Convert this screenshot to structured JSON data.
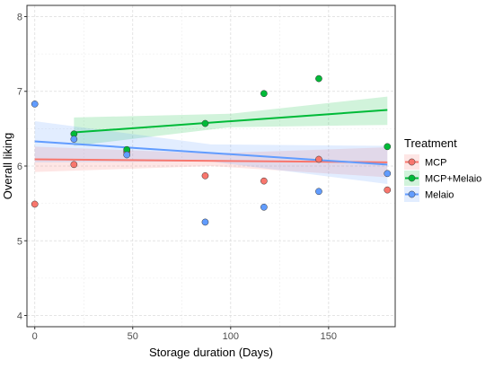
{
  "chart_data": {
    "type": "scatter",
    "xlabel": "Storage duration (Days)",
    "ylabel": "Overall liking",
    "xlim": [
      -4,
      184
    ],
    "ylim": [
      3.85,
      8.15
    ],
    "x_ticks": [
      0,
      50,
      100,
      150
    ],
    "y_ticks": [
      4,
      5,
      6,
      7,
      8
    ],
    "grid": true,
    "legend": {
      "title": "Treatment",
      "placement": "right"
    },
    "series": [
      {
        "name": "MCP",
        "color": "#f8766d",
        "points": [
          {
            "x": 0,
            "y": 5.49
          },
          {
            "x": 20,
            "y": 6.02
          },
          {
            "x": 47,
            "y": 6.19
          },
          {
            "x": 87,
            "y": 5.87
          },
          {
            "x": 117,
            "y": 5.8
          },
          {
            "x": 145,
            "y": 6.09
          },
          {
            "x": 180,
            "y": 5.68
          }
        ],
        "trend": {
          "x_start": 0,
          "y_start": 6.09,
          "x_end": 180,
          "y_end": 6.05
        },
        "band": [
          {
            "x": 0,
            "lo": 5.92,
            "hi": 6.26
          },
          {
            "x": 90,
            "lo": 6.0,
            "hi": 6.17
          },
          {
            "x": 180,
            "lo": 5.85,
            "hi": 6.25
          }
        ]
      },
      {
        "name": "MCP+Melaio",
        "color": "#00ba38",
        "points": [
          {
            "x": 20,
            "y": 6.43
          },
          {
            "x": 47,
            "y": 6.22
          },
          {
            "x": 87,
            "y": 6.57
          },
          {
            "x": 117,
            "y": 6.97
          },
          {
            "x": 145,
            "y": 7.17
          },
          {
            "x": 180,
            "y": 6.26
          }
        ],
        "trend": {
          "x_start": 20,
          "y_start": 6.45,
          "x_end": 180,
          "y_end": 6.75
        },
        "band": [
          {
            "x": 20,
            "lo": 6.27,
            "hi": 6.65
          },
          {
            "x": 100,
            "lo": 6.52,
            "hi": 6.7
          },
          {
            "x": 180,
            "lo": 6.55,
            "hi": 6.93
          }
        ]
      },
      {
        "name": "Melaio",
        "color": "#619cff",
        "points": [
          {
            "x": 0,
            "y": 6.83
          },
          {
            "x": 20,
            "y": 6.36
          },
          {
            "x": 47,
            "y": 6.15
          },
          {
            "x": 87,
            "y": 5.25
          },
          {
            "x": 117,
            "y": 5.45
          },
          {
            "x": 145,
            "y": 5.66
          },
          {
            "x": 180,
            "y": 5.9
          }
        ],
        "trend": {
          "x_start": 0,
          "y_start": 6.33,
          "x_end": 180,
          "y_end": 6.02
        },
        "band": [
          {
            "x": 0,
            "lo": 6.05,
            "hi": 6.6
          },
          {
            "x": 90,
            "lo": 6.06,
            "hi": 6.29
          },
          {
            "x": 180,
            "lo": 5.76,
            "hi": 6.27
          }
        ]
      }
    ]
  }
}
